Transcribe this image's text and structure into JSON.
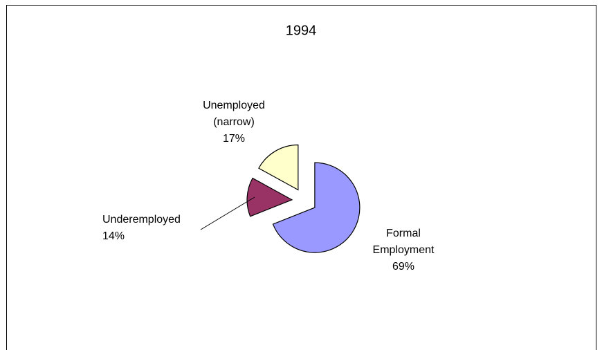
{
  "chart_data": {
    "type": "pie",
    "title": "1994",
    "categories": [
      "Formal Employment",
      "Underemployed",
      "Unemployed (narrow)"
    ],
    "values": [
      69,
      14,
      17
    ],
    "value_labels": [
      "69%",
      "14%",
      "17%"
    ],
    "colors": [
      "#9999ff",
      "#993366",
      "#ffffcc"
    ]
  }
}
